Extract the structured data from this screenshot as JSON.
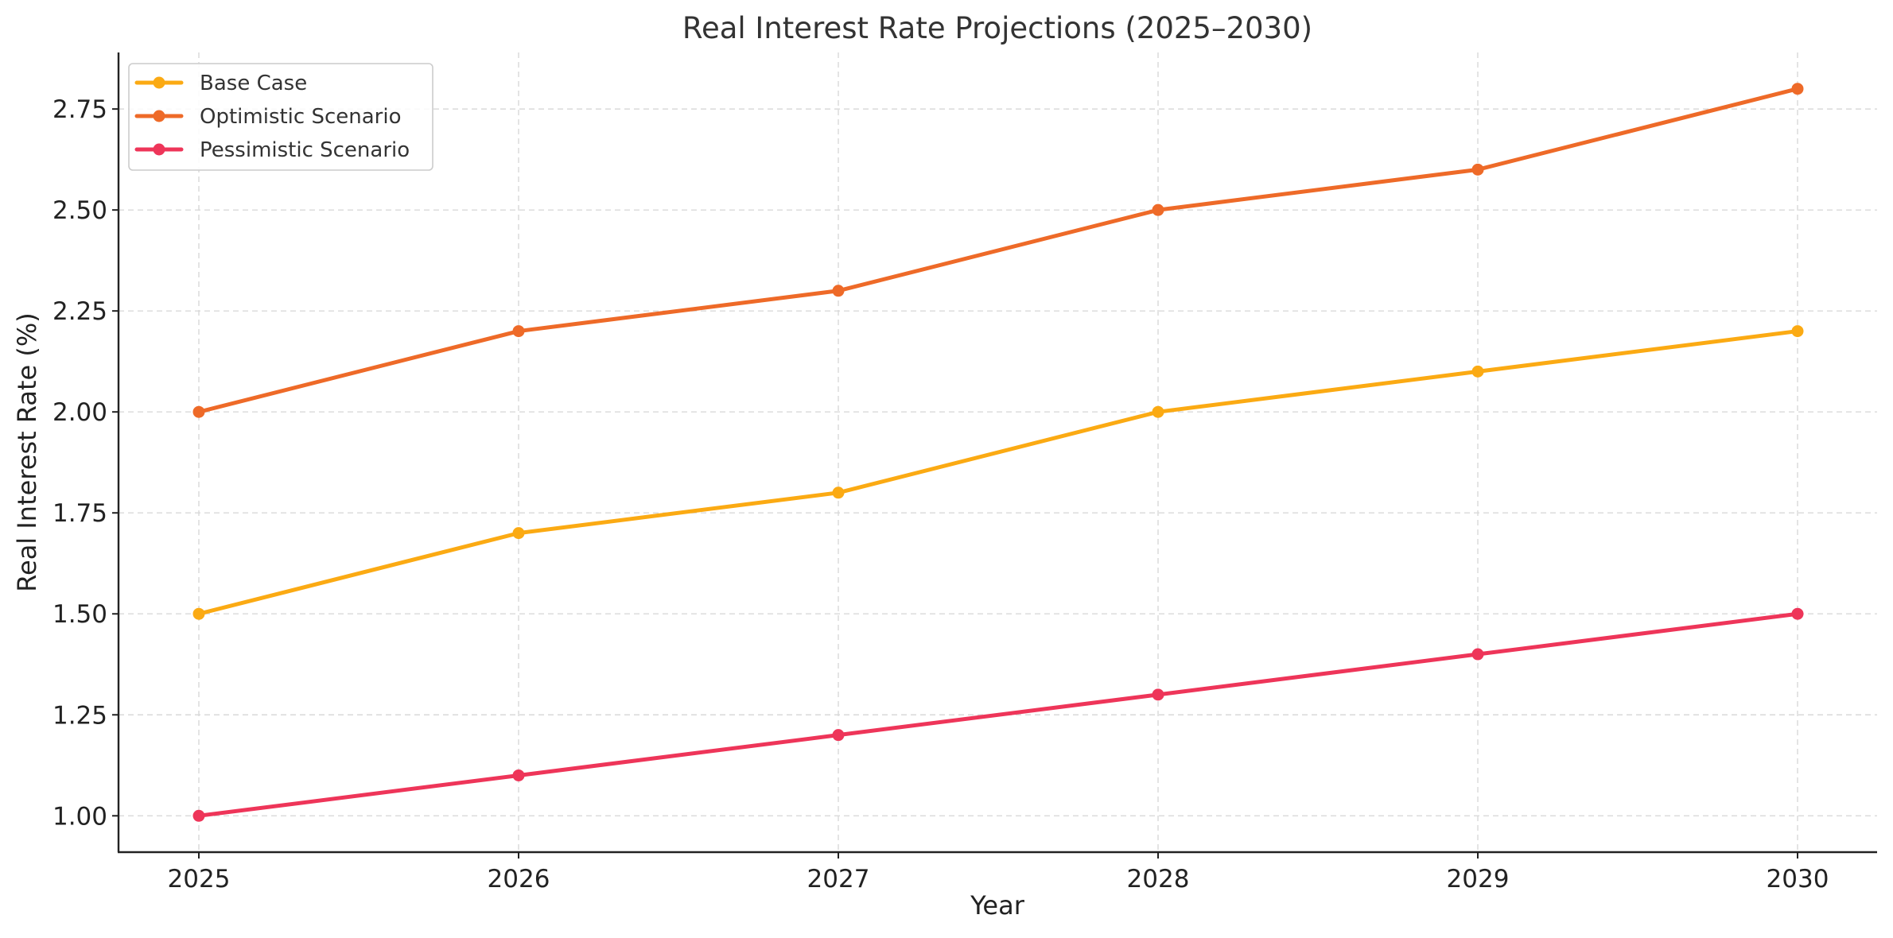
{
  "chart_data": {
    "type": "line",
    "title": "Real Interest Rate Projections (2025–2030)",
    "xlabel": "Year",
    "ylabel": "Real Interest Rate (%)",
    "categories": [
      "2025",
      "2026",
      "2027",
      "2028",
      "2029",
      "2030"
    ],
    "y_ticks": [
      "1.00",
      "1.25",
      "1.50",
      "1.75",
      "2.00",
      "2.25",
      "2.50",
      "2.75"
    ],
    "ylim": [
      0.91,
      2.89
    ],
    "grid": true,
    "legend_position": "top-left",
    "series": [
      {
        "name": "Base Case",
        "color": "#FBAA13",
        "values": [
          1.5,
          1.7,
          1.8,
          2.0,
          2.1,
          2.2
        ]
      },
      {
        "name": "Optimistic Scenario",
        "color": "#EE6A28",
        "values": [
          2.0,
          2.2,
          2.3,
          2.5,
          2.6,
          2.8
        ]
      },
      {
        "name": "Pessimistic Scenario",
        "color": "#EE3559",
        "values": [
          1.0,
          1.1,
          1.2,
          1.3,
          1.4,
          1.5
        ]
      }
    ]
  }
}
